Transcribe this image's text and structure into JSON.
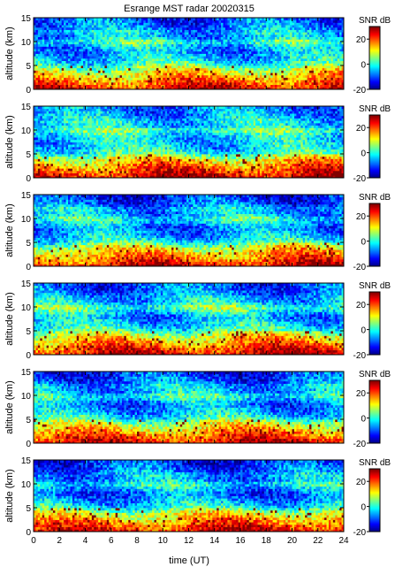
{
  "chart_data": {
    "type": "heatmap",
    "title": "Esrange MST radar 20020315",
    "xlabel": "time (UT)",
    "ylabel": "altitude (km)",
    "colorbar_label": "SNR dB",
    "xlim": [
      0,
      24
    ],
    "ylim": [
      0,
      15
    ],
    "clim": [
      -20,
      30
    ],
    "x_ticks": [
      0,
      2,
      4,
      6,
      8,
      10,
      12,
      14,
      16,
      18,
      20,
      22,
      24
    ],
    "y_ticks": [
      0,
      5,
      10,
      15
    ],
    "colorbar_ticks": [
      -20,
      0,
      20
    ],
    "colormap": "jet",
    "colors": {
      "low": "#00008f",
      "mid_low": "#00bfff",
      "mid": "#7fff7f",
      "mid_high": "#ffbf00",
      "high": "#8f0000"
    },
    "panels": [
      {
        "panel": 1,
        "profile": [
          [
            0,
            24
          ],
          [
            2,
            16
          ],
          [
            4,
            8
          ],
          [
            5,
            2
          ],
          [
            6,
            -2
          ],
          [
            8,
            -6
          ],
          [
            9,
            -4
          ],
          [
            10,
            2
          ],
          [
            11,
            -6
          ],
          [
            12,
            -4
          ],
          [
            13,
            -8
          ],
          [
            15,
            -10
          ]
        ]
      },
      {
        "panel": 2,
        "profile": [
          [
            0,
            26
          ],
          [
            2,
            18
          ],
          [
            4,
            10
          ],
          [
            5,
            2
          ],
          [
            6,
            -2
          ],
          [
            8,
            -4
          ],
          [
            9,
            -2
          ],
          [
            10,
            4
          ],
          [
            11,
            -4
          ],
          [
            12,
            -2
          ],
          [
            13,
            -6
          ],
          [
            15,
            -8
          ]
        ]
      },
      {
        "panel": 3,
        "profile": [
          [
            0,
            24
          ],
          [
            2,
            16
          ],
          [
            4,
            8
          ],
          [
            5,
            0
          ],
          [
            6,
            -4
          ],
          [
            8,
            -8
          ],
          [
            9,
            -4
          ],
          [
            10,
            0
          ],
          [
            11,
            -6
          ],
          [
            12,
            -4
          ],
          [
            13,
            -10
          ],
          [
            15,
            -12
          ]
        ]
      },
      {
        "panel": 4,
        "profile": [
          [
            0,
            25
          ],
          [
            2,
            17
          ],
          [
            4,
            9
          ],
          [
            5,
            2
          ],
          [
            6,
            -2
          ],
          [
            8,
            -6
          ],
          [
            9,
            -2
          ],
          [
            10,
            4
          ],
          [
            11,
            -4
          ],
          [
            12,
            -4
          ],
          [
            13,
            -8
          ],
          [
            15,
            -10
          ]
        ]
      },
      {
        "panel": 5,
        "profile": [
          [
            0,
            24
          ],
          [
            2,
            16
          ],
          [
            4,
            8
          ],
          [
            5,
            1
          ],
          [
            6,
            -3
          ],
          [
            8,
            -8
          ],
          [
            9,
            -4
          ],
          [
            10,
            1
          ],
          [
            11,
            -6
          ],
          [
            12,
            -4
          ],
          [
            13,
            -9
          ],
          [
            15,
            -12
          ]
        ]
      },
      {
        "panel": 6,
        "profile": [
          [
            0,
            24
          ],
          [
            2,
            16
          ],
          [
            4,
            8
          ],
          [
            5,
            0
          ],
          [
            6,
            -4
          ],
          [
            8,
            -9
          ],
          [
            9,
            -5
          ],
          [
            10,
            0
          ],
          [
            11,
            -7
          ],
          [
            12,
            -5
          ],
          [
            13,
            -10
          ],
          [
            15,
            -12
          ]
        ]
      }
    ]
  }
}
